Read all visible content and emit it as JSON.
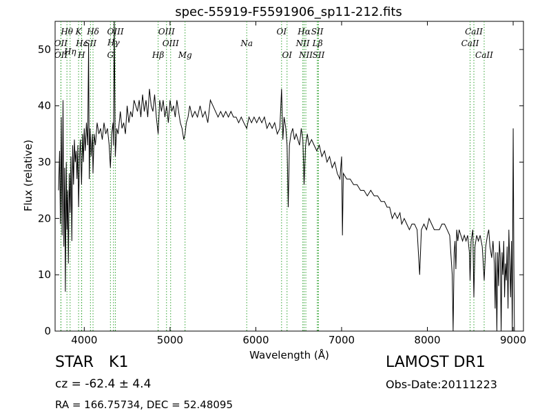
{
  "chart_data": {
    "type": "line",
    "title": "spec-55919-F5591906_sp11-212.fits",
    "xlabel": "Wavelength (Å)",
    "ylabel": "Flux (relative)",
    "xlim": [
      3660,
      9120
    ],
    "ylim": [
      0,
      55
    ],
    "xticks": [
      4000,
      5000,
      6000,
      7000,
      8000,
      9000
    ],
    "yticks": [
      0,
      10,
      20,
      30,
      40,
      50
    ],
    "grid": false,
    "line_color": "#000000",
    "marker_color": "#2ca02c",
    "lines": [
      {
        "label": "Hθ",
        "x": 3798,
        "row": 1
      },
      {
        "label": "OII",
        "x": 3727,
        "row": 2
      },
      {
        "label": "OII",
        "x": 3729,
        "row": 3
      },
      {
        "label": "Hη",
        "x": 3835,
        "row": 2.7
      },
      {
        "label": "K",
        "x": 3934,
        "row": 1
      },
      {
        "label": "Hε",
        "x": 3970,
        "row": 2
      },
      {
        "label": "SII",
        "x": 4072,
        "row": 2
      },
      {
        "label": "H",
        "x": 3968,
        "row": 3
      },
      {
        "label": "Hδ",
        "x": 4102,
        "row": 1
      },
      {
        "label": "OIII",
        "x": 4363,
        "row": 1
      },
      {
        "label": "Hγ",
        "x": 4341,
        "row": 1.95
      },
      {
        "label": "G",
        "x": 4305,
        "row": 3
      },
      {
        "label": "OIII",
        "x": 4959,
        "row": 1
      },
      {
        "label": "OIII",
        "x": 5007,
        "row": 2
      },
      {
        "label": "Hβ",
        "x": 4861,
        "row": 3
      },
      {
        "label": "Mg",
        "x": 5175,
        "row": 3
      },
      {
        "label": "Na",
        "x": 5894,
        "row": 2
      },
      {
        "label": "OI",
        "x": 6300,
        "row": 1
      },
      {
        "label": "OI",
        "x": 6364,
        "row": 3
      },
      {
        "label": "Hα",
        "x": 6563,
        "row": 1
      },
      {
        "label": "SII",
        "x": 6716,
        "row": 1
      },
      {
        "label": "NII",
        "x": 6548,
        "row": 2
      },
      {
        "label": "Lβ",
        "x": 6720,
        "row": 2
      },
      {
        "label": "NII",
        "x": 6583,
        "row": 3
      },
      {
        "label": "SII",
        "x": 6731,
        "row": 3
      },
      {
        "label": "CaII",
        "x": 8542,
        "row": 1
      },
      {
        "label": "CaII",
        "x": 8498,
        "row": 2
      },
      {
        "label": "CaII",
        "x": 8662,
        "row": 3
      }
    ],
    "spectrum": [
      [
        3700,
        25
      ],
      [
        3712,
        32
      ],
      [
        3722,
        19
      ],
      [
        3732,
        38
      ],
      [
        3742,
        17
      ],
      [
        3752,
        41
      ],
      [
        3762,
        15
      ],
      [
        3772,
        29
      ],
      [
        3780,
        7
      ],
      [
        3790,
        30
      ],
      [
        3798,
        18
      ],
      [
        3806,
        25
      ],
      [
        3815,
        12
      ],
      [
        3825,
        28
      ],
      [
        3835,
        21
      ],
      [
        3845,
        31
      ],
      [
        3855,
        16
      ],
      [
        3865,
        33
      ],
      [
        3875,
        26
      ],
      [
        3885,
        34
      ],
      [
        3895,
        30
      ],
      [
        3905,
        32
      ],
      [
        3915,
        27
      ],
      [
        3925,
        33
      ],
      [
        3934,
        22
      ],
      [
        3945,
        31
      ],
      [
        3955,
        34
      ],
      [
        3968,
        26
      ],
      [
        3980,
        35
      ],
      [
        3990,
        30
      ],
      [
        4000,
        36
      ],
      [
        4012,
        32
      ],
      [
        4025,
        37
      ],
      [
        4040,
        33
      ],
      [
        4050,
        51
      ],
      [
        4058,
        27
      ],
      [
        4068,
        36
      ],
      [
        4080,
        31
      ],
      [
        4095,
        35
      ],
      [
        4102,
        28
      ],
      [
        4115,
        35
      ],
      [
        4130,
        33
      ],
      [
        4150,
        37
      ],
      [
        4170,
        35
      ],
      [
        4190,
        36
      ],
      [
        4210,
        34
      ],
      [
        4230,
        37
      ],
      [
        4250,
        35
      ],
      [
        4270,
        36
      ],
      [
        4290,
        33
      ],
      [
        4305,
        29
      ],
      [
        4320,
        35
      ],
      [
        4335,
        37
      ],
      [
        4341,
        33
      ],
      [
        4350,
        55
      ],
      [
        4362,
        31
      ],
      [
        4378,
        36
      ],
      [
        4395,
        35
      ],
      [
        4420,
        39
      ],
      [
        4440,
        36
      ],
      [
        4460,
        37
      ],
      [
        4480,
        35
      ],
      [
        4500,
        40
      ],
      [
        4520,
        37
      ],
      [
        4540,
        39
      ],
      [
        4560,
        38
      ],
      [
        4580,
        41
      ],
      [
        4600,
        40
      ],
      [
        4620,
        39
      ],
      [
        4640,
        41
      ],
      [
        4660,
        38
      ],
      [
        4680,
        42
      ],
      [
        4700,
        39
      ],
      [
        4720,
        41
      ],
      [
        4740,
        38
      ],
      [
        4760,
        43
      ],
      [
        4780,
        40
      ],
      [
        4800,
        39
      ],
      [
        4820,
        42
      ],
      [
        4840,
        38
      ],
      [
        4861,
        35
      ],
      [
        4880,
        41
      ],
      [
        4900,
        39
      ],
      [
        4920,
        41
      ],
      [
        4940,
        38
      ],
      [
        4960,
        40
      ],
      [
        4980,
        37
      ],
      [
        5000,
        41
      ],
      [
        5020,
        39
      ],
      [
        5040,
        40
      ],
      [
        5060,
        38
      ],
      [
        5080,
        41
      ],
      [
        5100,
        39
      ],
      [
        5120,
        37
      ],
      [
        5140,
        36
      ],
      [
        5160,
        34
      ],
      [
        5175,
        35
      ],
      [
        5190,
        37
      ],
      [
        5210,
        38
      ],
      [
        5230,
        40
      ],
      [
        5260,
        38
      ],
      [
        5290,
        39
      ],
      [
        5320,
        38
      ],
      [
        5350,
        40
      ],
      [
        5380,
        38
      ],
      [
        5410,
        39
      ],
      [
        5440,
        37
      ],
      [
        5470,
        41
      ],
      [
        5500,
        40
      ],
      [
        5530,
        39
      ],
      [
        5560,
        38
      ],
      [
        5590,
        39
      ],
      [
        5620,
        38
      ],
      [
        5650,
        39
      ],
      [
        5680,
        38
      ],
      [
        5710,
        39
      ],
      [
        5740,
        38
      ],
      [
        5770,
        38
      ],
      [
        5800,
        37
      ],
      [
        5830,
        38
      ],
      [
        5860,
        37
      ],
      [
        5894,
        36
      ],
      [
        5920,
        38
      ],
      [
        5950,
        37
      ],
      [
        5980,
        38
      ],
      [
        6010,
        37
      ],
      [
        6040,
        38
      ],
      [
        6070,
        37
      ],
      [
        6100,
        38
      ],
      [
        6130,
        36
      ],
      [
        6160,
        37
      ],
      [
        6190,
        36
      ],
      [
        6220,
        37
      ],
      [
        6250,
        35
      ],
      [
        6280,
        36
      ],
      [
        6300,
        43
      ],
      [
        6315,
        34
      ],
      [
        6330,
        38
      ],
      [
        6350,
        36
      ],
      [
        6364,
        33
      ],
      [
        6378,
        22
      ],
      [
        6392,
        33
      ],
      [
        6410,
        35
      ],
      [
        6430,
        36
      ],
      [
        6450,
        34
      ],
      [
        6470,
        35
      ],
      [
        6490,
        34
      ],
      [
        6510,
        33
      ],
      [
        6530,
        36
      ],
      [
        6548,
        34
      ],
      [
        6563,
        26
      ],
      [
        6580,
        33
      ],
      [
        6600,
        35
      ],
      [
        6620,
        33
      ],
      [
        6650,
        34
      ],
      [
        6680,
        33
      ],
      [
        6710,
        32
      ],
      [
        6740,
        33
      ],
      [
        6770,
        31
      ],
      [
        6800,
        32
      ],
      [
        6830,
        30
      ],
      [
        6860,
        31
      ],
      [
        6890,
        29
      ],
      [
        6920,
        30
      ],
      [
        6950,
        28
      ],
      [
        6980,
        27
      ],
      [
        7000,
        31
      ],
      [
        7010,
        17
      ],
      [
        7020,
        28
      ],
      [
        7060,
        27
      ],
      [
        7100,
        27
      ],
      [
        7140,
        26
      ],
      [
        7180,
        26
      ],
      [
        7220,
        25
      ],
      [
        7260,
        25
      ],
      [
        7300,
        24
      ],
      [
        7340,
        25
      ],
      [
        7380,
        24
      ],
      [
        7420,
        24
      ],
      [
        7460,
        23
      ],
      [
        7500,
        23
      ],
      [
        7530,
        22
      ],
      [
        7560,
        22
      ],
      [
        7590,
        20
      ],
      [
        7620,
        21
      ],
      [
        7650,
        20
      ],
      [
        7680,
        21
      ],
      [
        7700,
        19
      ],
      [
        7730,
        20
      ],
      [
        7760,
        19
      ],
      [
        7790,
        18
      ],
      [
        7820,
        19
      ],
      [
        7850,
        19
      ],
      [
        7880,
        18
      ],
      [
        7910,
        10
      ],
      [
        7930,
        18
      ],
      [
        7960,
        19
      ],
      [
        7990,
        18
      ],
      [
        8020,
        20
      ],
      [
        8050,
        19
      ],
      [
        8080,
        18
      ],
      [
        8110,
        18
      ],
      [
        8140,
        18
      ],
      [
        8170,
        19
      ],
      [
        8200,
        19
      ],
      [
        8230,
        18
      ],
      [
        8260,
        17
      ],
      [
        8290,
        10
      ],
      [
        8300,
        0
      ],
      [
        8312,
        14
      ],
      [
        8322,
        16
      ],
      [
        8332,
        11
      ],
      [
        8342,
        18
      ],
      [
        8355,
        16
      ],
      [
        8370,
        18
      ],
      [
        8390,
        17
      ],
      [
        8410,
        16
      ],
      [
        8430,
        17
      ],
      [
        8450,
        16
      ],
      [
        8470,
        17
      ],
      [
        8490,
        14
      ],
      [
        8498,
        9
      ],
      [
        8510,
        16
      ],
      [
        8530,
        18
      ],
      [
        8542,
        6
      ],
      [
        8555,
        15
      ],
      [
        8575,
        17
      ],
      [
        8595,
        16
      ],
      [
        8615,
        17
      ],
      [
        8640,
        15
      ],
      [
        8662,
        9
      ],
      [
        8680,
        15
      ],
      [
        8700,
        17
      ],
      [
        8715,
        18
      ],
      [
        8730,
        15
      ],
      [
        8750,
        13
      ],
      [
        8765,
        16
      ],
      [
        8780,
        12
      ],
      [
        8790,
        4
      ],
      [
        8798,
        14
      ],
      [
        8810,
        0
      ],
      [
        8820,
        14
      ],
      [
        8830,
        8
      ],
      [
        8840,
        16
      ],
      [
        8850,
        13
      ],
      [
        8860,
        0
      ],
      [
        8870,
        14
      ],
      [
        8880,
        10
      ],
      [
        8890,
        16
      ],
      [
        8900,
        6
      ],
      [
        8910,
        12
      ],
      [
        8920,
        9
      ],
      [
        8930,
        15
      ],
      [
        8940,
        4
      ],
      [
        8950,
        18
      ],
      [
        8960,
        12
      ],
      [
        8970,
        6
      ],
      [
        8980,
        16
      ],
      [
        8990,
        0
      ],
      [
        9000,
        36
      ],
      [
        9008,
        12
      ],
      [
        9015,
        0
      ]
    ]
  },
  "info": {
    "class_label": "STAR",
    "subclass": "K1",
    "cz_text": "cz = -62.4 ± 4.4",
    "survey": "LAMOST DR1",
    "obs_date": "Obs-Date:20111223",
    "radec": "RA = 166.75734, DEC = 52.48095"
  }
}
